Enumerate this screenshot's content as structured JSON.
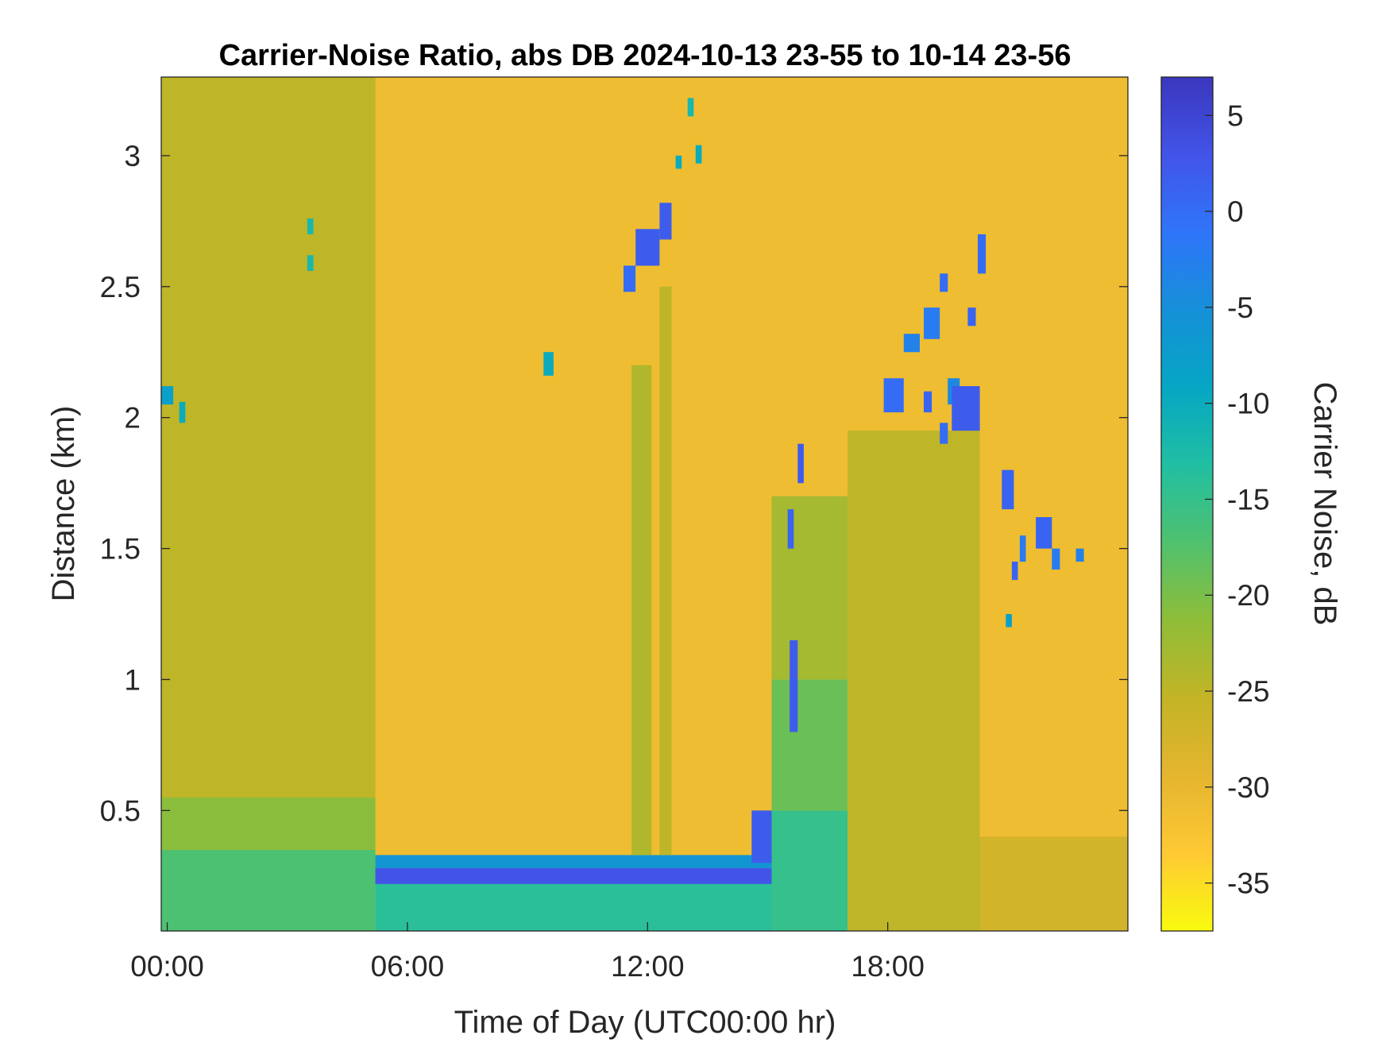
{
  "chart_data": {
    "type": "heatmap",
    "title": "Carrier-Noise Ratio, abs DB 2024-10-13 23-55 to 10-14 23-56",
    "xlabel": "Time of Day (UTC00:00 hr)",
    "ylabel": "Distance (km)",
    "colorbar_label": "Carrier Noise, dB",
    "x_ticks": [
      {
        "value": 0,
        "label": "00:00"
      },
      {
        "value": 6,
        "label": "06:00"
      },
      {
        "value": 12,
        "label": "12:00"
      },
      {
        "value": 18,
        "label": "18:00"
      }
    ],
    "xlim": [
      -0.15,
      24.0
    ],
    "y_ticks": [
      {
        "value": 0.5,
        "label": "0.5"
      },
      {
        "value": 1,
        "label": "1"
      },
      {
        "value": 1.5,
        "label": "1.5"
      },
      {
        "value": 2,
        "label": "2"
      },
      {
        "value": 2.5,
        "label": "2.5"
      },
      {
        "value": 3,
        "label": "3"
      }
    ],
    "ylim": [
      0.04,
      3.3
    ],
    "colorbar_ticks": [
      {
        "value": 5,
        "label": "5"
      },
      {
        "value": 0,
        "label": "0"
      },
      {
        "value": -5,
        "label": "-5"
      },
      {
        "value": -10,
        "label": "-10"
      },
      {
        "value": -15,
        "label": "-15"
      },
      {
        "value": -20,
        "label": "-20"
      },
      {
        "value": -25,
        "label": "-25"
      },
      {
        "value": -30,
        "label": "-30"
      },
      {
        "value": -35,
        "label": "-35"
      }
    ],
    "clim": [
      -37.5,
      7
    ],
    "colormap": [
      "#f9fb0e",
      "#fec934",
      "#e5b52f",
      "#c3b426",
      "#8fbd38",
      "#50c16e",
      "#21bfa2",
      "#06a6c4",
      "#1690d8",
      "#2f75fa",
      "#4254e8",
      "#3a37bd"
    ],
    "background_db": -31,
    "regions": [
      {
        "t": [
          -0.15,
          5.2
        ],
        "d": [
          0.04,
          0.35
        ],
        "db": -17
      },
      {
        "t": [
          -0.15,
          5.2
        ],
        "d": [
          0.35,
          0.55
        ],
        "db": -21
      },
      {
        "t": [
          -0.15,
          5.2
        ],
        "d": [
          0.55,
          3.3
        ],
        "db": -25
      },
      {
        "t": [
          5.2,
          15.1
        ],
        "d": [
          0.04,
          0.22
        ],
        "db": -14
      },
      {
        "t": [
          5.2,
          15.1
        ],
        "d": [
          0.22,
          0.28
        ],
        "db": 1
      },
      {
        "t": [
          5.2,
          15.1
        ],
        "d": [
          0.28,
          0.33
        ],
        "db": -6
      },
      {
        "t": [
          11.6,
          12.1
        ],
        "d": [
          0.33,
          2.2
        ],
        "db": -24
      },
      {
        "t": [
          12.3,
          12.6
        ],
        "d": [
          0.33,
          2.5
        ],
        "db": -25
      },
      {
        "t": [
          15.1,
          17.0
        ],
        "d": [
          0.04,
          0.5
        ],
        "db": -15
      },
      {
        "t": [
          15.1,
          17.0
        ],
        "d": [
          0.5,
          1.0
        ],
        "db": -19
      },
      {
        "t": [
          15.1,
          17.0
        ],
        "d": [
          1.0,
          1.7
        ],
        "db": -23
      },
      {
        "t": [
          17.0,
          20.3
        ],
        "d": [
          0.04,
          1.95
        ],
        "db": -25
      },
      {
        "t": [
          20.3,
          24.0
        ],
        "d": [
          0.04,
          0.4
        ],
        "db": -27
      }
    ],
    "echoes": [
      {
        "t": [
          5.2,
          15.1
        ],
        "d": [
          0.22,
          0.28
        ],
        "db": 3
      },
      {
        "t": [
          -0.15,
          0.15
        ],
        "d": [
          2.05,
          2.12
        ],
        "db": -8
      },
      {
        "t": [
          0.3,
          0.45
        ],
        "d": [
          1.98,
          2.06
        ],
        "db": -10
      },
      {
        "t": [
          3.5,
          3.65
        ],
        "d": [
          2.56,
          2.62
        ],
        "db": -12
      },
      {
        "t": [
          3.5,
          3.65
        ],
        "d": [
          2.7,
          2.76
        ],
        "db": -12
      },
      {
        "t": [
          9.4,
          9.65
        ],
        "d": [
          2.16,
          2.25
        ],
        "db": -10
      },
      {
        "t": [
          11.4,
          11.7
        ],
        "d": [
          2.48,
          2.58
        ],
        "db": 0
      },
      {
        "t": [
          11.7,
          12.3
        ],
        "d": [
          2.58,
          2.72
        ],
        "db": 2
      },
      {
        "t": [
          12.3,
          12.6
        ],
        "d": [
          2.68,
          2.82
        ],
        "db": 2
      },
      {
        "t": [
          12.7,
          12.85
        ],
        "d": [
          2.95,
          3.0
        ],
        "db": -10
      },
      {
        "t": [
          13.0,
          13.15
        ],
        "d": [
          3.15,
          3.22
        ],
        "db": -12
      },
      {
        "t": [
          13.2,
          13.35
        ],
        "d": [
          2.97,
          3.04
        ],
        "db": -10
      },
      {
        "t": [
          14.6,
          15.1
        ],
        "d": [
          0.3,
          0.5
        ],
        "db": 2
      },
      {
        "t": [
          15.75,
          15.9
        ],
        "d": [
          1.75,
          1.9
        ],
        "db": 2
      },
      {
        "t": [
          15.5,
          15.65
        ],
        "d": [
          1.5,
          1.65
        ],
        "db": 1
      },
      {
        "t": [
          15.55,
          15.75
        ],
        "d": [
          0.8,
          1.15
        ],
        "db": 2
      },
      {
        "t": [
          17.9,
          18.4
        ],
        "d": [
          2.02,
          2.15
        ],
        "db": 0
      },
      {
        "t": [
          18.4,
          18.8
        ],
        "d": [
          2.25,
          2.32
        ],
        "db": -3
      },
      {
        "t": [
          18.9,
          19.3
        ],
        "d": [
          2.3,
          2.42
        ],
        "db": -2
      },
      {
        "t": [
          19.3,
          19.5
        ],
        "d": [
          2.48,
          2.55
        ],
        "db": 0
      },
      {
        "t": [
          18.9,
          19.1
        ],
        "d": [
          2.02,
          2.1
        ],
        "db": 1
      },
      {
        "t": [
          19.5,
          19.8
        ],
        "d": [
          2.05,
          2.15
        ],
        "db": -4
      },
      {
        "t": [
          19.3,
          19.5
        ],
        "d": [
          1.9,
          1.98
        ],
        "db": 0
      },
      {
        "t": [
          19.6,
          20.3
        ],
        "d": [
          1.95,
          2.12
        ],
        "db": 2
      },
      {
        "t": [
          20.0,
          20.2
        ],
        "d": [
          2.35,
          2.42
        ],
        "db": 1
      },
      {
        "t": [
          20.25,
          20.45
        ],
        "d": [
          2.55,
          2.7
        ],
        "db": 0
      },
      {
        "t": [
          20.85,
          21.15
        ],
        "d": [
          1.65,
          1.8
        ],
        "db": 1
      },
      {
        "t": [
          21.1,
          21.25
        ],
        "d": [
          1.38,
          1.45
        ],
        "db": 1
      },
      {
        "t": [
          21.3,
          21.45
        ],
        "d": [
          1.45,
          1.55
        ],
        "db": -2
      },
      {
        "t": [
          21.7,
          22.1
        ],
        "d": [
          1.5,
          1.62
        ],
        "db": 1
      },
      {
        "t": [
          22.1,
          22.3
        ],
        "d": [
          1.42,
          1.5
        ],
        "db": -2
      },
      {
        "t": [
          22.7,
          22.9
        ],
        "d": [
          1.45,
          1.5
        ],
        "db": -3
      },
      {
        "t": [
          20.95,
          21.1
        ],
        "d": [
          1.2,
          1.25
        ],
        "db": -8
      }
    ]
  }
}
